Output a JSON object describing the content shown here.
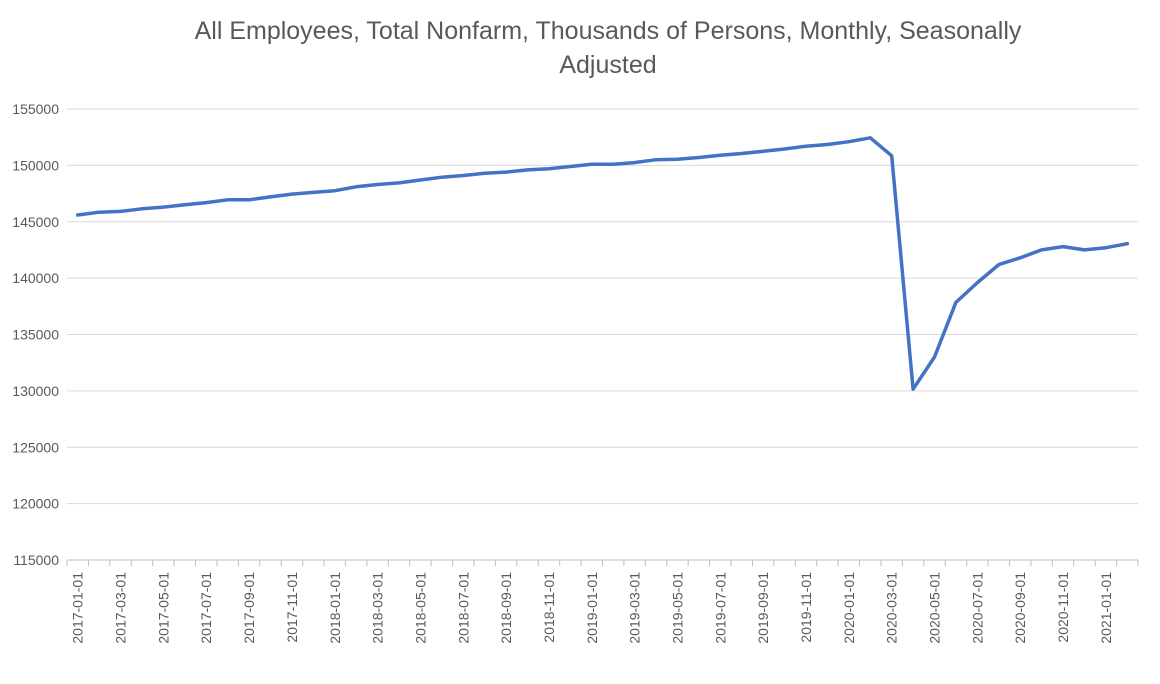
{
  "chart_data": {
    "type": "line",
    "title": "All Employees, Total Nonfarm, Thousands of Persons, Monthly, Seasonally\nAdjusted",
    "xlabel": "",
    "ylabel": "",
    "ylim": [
      115000,
      155000
    ],
    "y_ticks": [
      115000,
      120000,
      125000,
      130000,
      135000,
      140000,
      145000,
      150000,
      155000
    ],
    "x_tick_labels": [
      "2017-01-01",
      "2017-03-01",
      "2017-05-01",
      "2017-07-01",
      "2017-09-01",
      "2017-11-01",
      "2018-01-01",
      "2018-03-01",
      "2018-05-01",
      "2018-07-01",
      "2018-09-01",
      "2018-11-01",
      "2019-01-01",
      "2019-03-01",
      "2019-05-01",
      "2019-07-01",
      "2019-09-01",
      "2019-11-01",
      "2020-01-01",
      "2020-03-01",
      "2020-05-01",
      "2020-07-01",
      "2020-09-01",
      "2020-11-01",
      "2021-01-01"
    ],
    "grid": "horizontal",
    "line_color": "#4472C4",
    "series": [
      {
        "x": [
          "2017-01-01",
          "2017-02-01",
          "2017-03-01",
          "2017-04-01",
          "2017-05-01",
          "2017-06-01",
          "2017-07-01",
          "2017-08-01",
          "2017-09-01",
          "2017-10-01",
          "2017-11-01",
          "2017-12-01",
          "2018-01-01",
          "2018-02-01",
          "2018-03-01",
          "2018-04-01",
          "2018-05-01",
          "2018-06-01",
          "2018-07-01",
          "2018-08-01",
          "2018-09-01",
          "2018-10-01",
          "2018-11-01",
          "2018-12-01",
          "2019-01-01",
          "2019-02-01",
          "2019-03-01",
          "2019-04-01",
          "2019-05-01",
          "2019-06-01",
          "2019-07-01",
          "2019-08-01",
          "2019-09-01",
          "2019-10-01",
          "2019-11-01",
          "2019-12-01",
          "2020-01-01",
          "2020-02-01",
          "2020-03-01",
          "2020-04-01",
          "2020-05-01",
          "2020-06-01",
          "2020-07-01",
          "2020-08-01",
          "2020-09-01",
          "2020-10-01",
          "2020-11-01",
          "2020-12-01",
          "2021-01-01",
          "2021-02-01"
        ],
        "values": [
          145600,
          145850,
          145920,
          146150,
          146300,
          146500,
          146700,
          146950,
          146950,
          147200,
          147450,
          147600,
          147750,
          148100,
          148300,
          148450,
          148700,
          148950,
          149100,
          149300,
          149400,
          149600,
          149700,
          149900,
          150100,
          150100,
          150250,
          150500,
          150550,
          150700,
          150900,
          151050,
          151250,
          151450,
          151700,
          151850,
          152100,
          152450,
          150850,
          130150,
          133000,
          137850,
          139600,
          141200,
          141800,
          142500,
          142800,
          142500,
          142700,
          143050
        ]
      }
    ]
  }
}
